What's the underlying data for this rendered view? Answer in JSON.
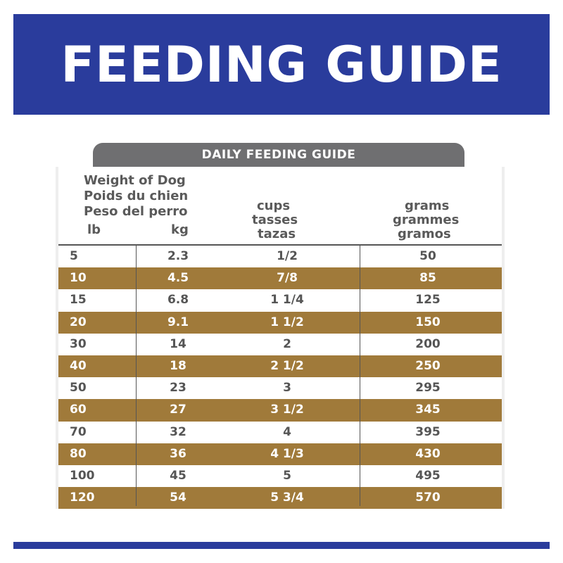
{
  "banner": {
    "title": "FEEDING GUIDE"
  },
  "table": {
    "tab_label": "DAILY FEEDING GUIDE",
    "header": {
      "weight": [
        "Weight of Dog",
        "Poids du chien",
        "Peso del perro"
      ],
      "lb": "lb",
      "kg": "kg",
      "cups": [
        "cups",
        "tasses",
        "tazas"
      ],
      "grams": [
        "grams",
        "grammes",
        "gramos"
      ]
    },
    "rows": [
      {
        "lb": "5",
        "kg": "2.3",
        "cups": "1/2",
        "grams": "50"
      },
      {
        "lb": "10",
        "kg": "4.5",
        "cups": "7/8",
        "grams": "85"
      },
      {
        "lb": "15",
        "kg": "6.8",
        "cups": "1 1/4",
        "grams": "125"
      },
      {
        "lb": "20",
        "kg": "9.1",
        "cups": "1 1/2",
        "grams": "150"
      },
      {
        "lb": "30",
        "kg": "14",
        "cups": "2",
        "grams": "200"
      },
      {
        "lb": "40",
        "kg": "18",
        "cups": "2 1/2",
        "grams": "250"
      },
      {
        "lb": "50",
        "kg": "23",
        "cups": "3",
        "grams": "295"
      },
      {
        "lb": "60",
        "kg": "27",
        "cups": "3 1/2",
        "grams": "345"
      },
      {
        "lb": "70",
        "kg": "32",
        "cups": "4",
        "grams": "395"
      },
      {
        "lb": "80",
        "kg": "36",
        "cups": "4 1/3",
        "grams": "430"
      },
      {
        "lb": "100",
        "kg": "45",
        "cups": "5",
        "grams": "495"
      },
      {
        "lb": "120",
        "kg": "54",
        "cups": "5 3/4",
        "grams": "570"
      }
    ]
  },
  "colors": {
    "banner_blue": "#2a3c9c",
    "tab_gray": "#6f6f71",
    "row_brown": "#a07a3a"
  }
}
